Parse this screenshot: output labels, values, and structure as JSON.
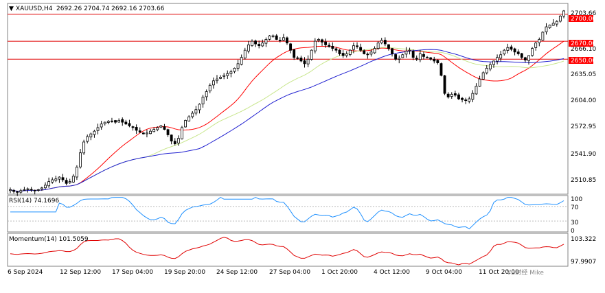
{
  "header": {
    "symbol": "XAUUSD,H4",
    "ohlc": "2692.26 2704.74 2692.16 2703.66"
  },
  "colors": {
    "background": "#ffffff",
    "candle_bull": "#ffffff",
    "candle_bear": "#000000",
    "ma_fast": "#ff0000",
    "ma_mid": "#c8e68c",
    "ma_slow": "#2020d0",
    "hline": "#e00000",
    "rsi": "#1e90ff",
    "momentum": "#e00000",
    "price_tag": "#ff0000"
  },
  "price_axis": {
    "ticks": [
      "2703.66",
      "2666.10",
      "2635.05",
      "2604.00",
      "2572.95",
      "2541.90",
      "2510.85"
    ],
    "labels": {
      "price_2703_66": "2703.66",
      "price_2666_10": "2666.10",
      "price_2635_05": "2635.05",
      "price_2604_00": "2604.00",
      "price_2572_95": "2572.95",
      "price_2541_90": "2541.90",
      "price_2510_85": "2510.85"
    }
  },
  "levels": [
    {
      "label": "2700.00",
      "value": 2700.0
    },
    {
      "label": "2670.00",
      "value": 2670.0
    },
    {
      "label": "2650.00",
      "value": 2650.0
    }
  ],
  "level_labels": {
    "l2700": "2700.00",
    "l2670": "2670.00",
    "l2650": "2650.00"
  },
  "rsi": {
    "title": "RSI(14) 74.1696",
    "axis": {
      "a100": "100",
      "a70": "70",
      "a30": "30",
      "a0": "0"
    }
  },
  "momentum": {
    "title": "Momentum(14) 101.5059",
    "axis": {
      "top": "103.322",
      "bottom": "97.9907"
    }
  },
  "time_axis": {
    "labels": {
      "t0": "6 Sep 2024",
      "t1": "12 Sep 12:00",
      "t2": "17 Sep 04:00",
      "t3": "19 Sep 20:00",
      "t4": "24 Sep 12:00",
      "t5": "27 Sep 04:00",
      "t6": "1 Oct 20:00",
      "t7": "4 Oct 12:00",
      "t8": "9 Oct 04:00",
      "t9": "11 Oct 20:00"
    }
  },
  "watermark": "VB财经 Mike",
  "chart_data": {
    "type": "candlestick",
    "title": "XAUUSD,H4",
    "ylim": [
      2500,
      2712
    ],
    "x": [
      "6 Sep 2024",
      "12 Sep 12:00",
      "17 Sep 04:00",
      "19 Sep 20:00",
      "24 Sep 12:00",
      "27 Sep 04:00",
      "1 Oct 20:00",
      "4 Oct 12:00",
      "9 Oct 04:00",
      "11 Oct 20:00"
    ],
    "close_path": [
      2505,
      2503,
      2502,
      2504,
      2505,
      2506,
      2505,
      2504,
      2505,
      2507,
      2510,
      2514,
      2516,
      2517,
      2519,
      2516,
      2512,
      2514,
      2520,
      2530,
      2546,
      2558,
      2564,
      2567,
      2570,
      2574,
      2578,
      2580,
      2581,
      2581,
      2580,
      2582,
      2580,
      2578,
      2576,
      2574,
      2571,
      2569,
      2567,
      2568,
      2570,
      2572,
      2574,
      2576,
      2572,
      2566,
      2559,
      2556,
      2562,
      2574,
      2582,
      2586,
      2590,
      2594,
      2600,
      2608,
      2614,
      2621,
      2626,
      2628,
      2630,
      2632,
      2634,
      2636,
      2640,
      2645,
      2652,
      2660,
      2666,
      2670,
      2667,
      2665,
      2668,
      2672,
      2676,
      2676,
      2672,
      2671,
      2674,
      2668,
      2660,
      2652,
      2651,
      2648,
      2645,
      2650,
      2660,
      2670,
      2672,
      2669,
      2666,
      2664,
      2662,
      2660,
      2656,
      2654,
      2656,
      2660,
      2665,
      2664,
      2660,
      2656,
      2655,
      2658,
      2662,
      2668,
      2671,
      2667,
      2662,
      2656,
      2650,
      2651,
      2655,
      2659,
      2660,
      2652,
      2650,
      2656,
      2653,
      2652,
      2650,
      2648,
      2646,
      2632,
      2612,
      2608,
      2611,
      2610,
      2606,
      2605,
      2604,
      2606,
      2612,
      2620,
      2628,
      2635,
      2640,
      2644,
      2648,
      2652,
      2655,
      2660,
      2663,
      2661,
      2658,
      2656,
      2652,
      2649,
      2654,
      2662,
      2668,
      2672,
      2680,
      2686,
      2688,
      2690,
      2692,
      2698,
      2703.66
    ],
    "series": [
      {
        "name": "RSI(14)",
        "last": 74.1696,
        "levels": [
          70,
          30
        ]
      },
      {
        "name": "Momentum(14)",
        "last": 101.5059
      }
    ]
  }
}
